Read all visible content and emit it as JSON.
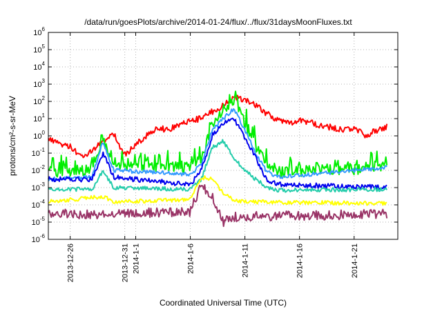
{
  "chart_data": {
    "type": "line",
    "title": "/data/run/goesPlots/archive/2014-01-24/flux/../flux/31daysMoonFluxes.txt",
    "xlabel": "Coordinated Universal Time (UTC)",
    "ylabel": "protons/cm²-s-sr-MeV",
    "y_scale": "log",
    "ylim": [
      1e-06,
      1000000.0
    ],
    "xlim": [
      "2013-12-24",
      "2014-01-25"
    ],
    "grid": true,
    "legend": "none",
    "x_ticks": [
      {
        "date": "2013-12-26",
        "label": "2013-12-26"
      },
      {
        "date": "2013-12-31",
        "label": "2013-12-31"
      },
      {
        "date": "2014-01-01",
        "label": "2014-1-1"
      },
      {
        "date": "2014-01-06",
        "label": "2014-1-6"
      },
      {
        "date": "2014-01-11",
        "label": "2014-1-11"
      },
      {
        "date": "2014-01-16",
        "label": "2014-1-16"
      },
      {
        "date": "2014-01-21",
        "label": "2014-1-21"
      }
    ],
    "y_ticks": [
      {
        "exp": "6"
      },
      {
        "exp": "5"
      },
      {
        "exp": "4"
      },
      {
        "exp": "3"
      },
      {
        "exp": "2"
      },
      {
        "exp": "1"
      },
      {
        "exp": "0"
      },
      {
        "exp": "-1"
      },
      {
        "exp": "-2"
      },
      {
        "exp": "-3"
      },
      {
        "exp": "-4"
      },
      {
        "exp": "-5"
      },
      {
        "exp": "-6"
      }
    ],
    "series": [
      {
        "color": "#ff0000",
        "noise": 0.18,
        "spike": 0,
        "points": [
          [
            "2013-12-24",
            0.8
          ],
          [
            "2013-12-25",
            0.3
          ],
          [
            "2013-12-26",
            0.25
          ],
          [
            "2013-12-27",
            0.06
          ],
          [
            "2013-12-28",
            0.15
          ],
          [
            "2013-12-29",
            0.5
          ],
          [
            "2013-12-30",
            1.2
          ],
          [
            "2013-12-31",
            0.08
          ],
          [
            "2014-01-01",
            0.3
          ],
          [
            "2014-01-02",
            1.0
          ],
          [
            "2014-01-03",
            3.0
          ],
          [
            "2014-01-04",
            2.0
          ],
          [
            "2014-01-05",
            5.0
          ],
          [
            "2014-01-06",
            8.0
          ],
          [
            "2014-01-07",
            10
          ],
          [
            "2014-01-08",
            25
          ],
          [
            "2014-01-09",
            60
          ],
          [
            "2014-01-10",
            180
          ],
          [
            "2014-01-11",
            120
          ],
          [
            "2014-01-12",
            60
          ],
          [
            "2014-01-13",
            20
          ],
          [
            "2014-01-14",
            8
          ],
          [
            "2014-01-15",
            5
          ],
          [
            "2014-01-16",
            8
          ],
          [
            "2014-01-17",
            6
          ],
          [
            "2014-01-18",
            4
          ],
          [
            "2014-01-19",
            3
          ],
          [
            "2014-01-20",
            2
          ],
          [
            "2014-01-21",
            3
          ],
          [
            "2014-01-22",
            1.0
          ],
          [
            "2014-01-23",
            2.0
          ],
          [
            "2014-01-24",
            3.5
          ]
        ]
      },
      {
        "color": "#00ee00",
        "noise": 0.35,
        "spike": 0.8,
        "points": [
          [
            "2013-12-24",
            0.008
          ],
          [
            "2013-12-28",
            0.01
          ],
          [
            "2013-12-29",
            0.8
          ],
          [
            "2013-12-30",
            0.02
          ],
          [
            "2014-01-06",
            0.015
          ],
          [
            "2014-01-07",
            0.05
          ],
          [
            "2014-01-08",
            5.0
          ],
          [
            "2014-01-09",
            20
          ],
          [
            "2014-01-10",
            100
          ],
          [
            "2014-01-11",
            5
          ],
          [
            "2014-01-12",
            0.3
          ],
          [
            "2014-01-13",
            0.02
          ],
          [
            "2014-01-14",
            0.008
          ],
          [
            "2014-01-24",
            0.015
          ]
        ]
      },
      {
        "color": "#3399ff",
        "noise": 0.12,
        "spike": 0,
        "points": [
          [
            "2013-12-24",
            0.003
          ],
          [
            "2013-12-28",
            0.004
          ],
          [
            "2013-12-29",
            0.5
          ],
          [
            "2013-12-30",
            0.01
          ],
          [
            "2014-01-06",
            0.006
          ],
          [
            "2014-01-07",
            0.02
          ],
          [
            "2014-01-08",
            2.0
          ],
          [
            "2014-01-09",
            10
          ],
          [
            "2014-01-10",
            40
          ],
          [
            "2014-01-11",
            2
          ],
          [
            "2014-01-12",
            0.1
          ],
          [
            "2014-01-13",
            0.008
          ],
          [
            "2014-01-14",
            0.004
          ],
          [
            "2014-01-24",
            0.015
          ]
        ]
      },
      {
        "color": "#0000ee",
        "noise": 0.15,
        "spike": 0,
        "points": [
          [
            "2013-12-24",
            0.003
          ],
          [
            "2013-12-28",
            0.003
          ],
          [
            "2013-12-29",
            0.1
          ],
          [
            "2013-12-30",
            0.004
          ],
          [
            "2014-01-06",
            0.0015
          ],
          [
            "2014-01-07",
            0.01
          ],
          [
            "2014-01-08",
            1.0
          ],
          [
            "2014-01-09",
            5
          ],
          [
            "2014-01-10",
            10
          ],
          [
            "2014-01-11",
            0.8
          ],
          [
            "2014-01-12",
            0.05
          ],
          [
            "2014-01-13",
            0.003
          ],
          [
            "2014-01-14",
            0.0015
          ],
          [
            "2014-01-24",
            0.001
          ]
        ]
      },
      {
        "color": "#22ccaa",
        "noise": 0.12,
        "spike": 0,
        "points": [
          [
            "2013-12-24",
            0.0008
          ],
          [
            "2013-12-28",
            0.0008
          ],
          [
            "2013-12-29",
            0.01
          ],
          [
            "2013-12-30",
            0.001
          ],
          [
            "2014-01-06",
            0.0008
          ],
          [
            "2014-01-07",
            0.003
          ],
          [
            "2014-01-08",
            0.2
          ],
          [
            "2014-01-09",
            0.5
          ],
          [
            "2014-01-10",
            0.05
          ],
          [
            "2014-01-11",
            0.01
          ],
          [
            "2014-01-12",
            0.003
          ],
          [
            "2014-01-13",
            0.001
          ],
          [
            "2014-01-14",
            0.0007
          ],
          [
            "2014-01-24",
            0.0008
          ]
        ]
      },
      {
        "color": "#ffff00",
        "noise": 0.12,
        "spike": 0,
        "points": [
          [
            "2013-12-24",
            0.00015
          ],
          [
            "2013-12-29",
            0.0003
          ],
          [
            "2013-12-30",
            0.00015
          ],
          [
            "2014-01-06",
            0.0002
          ],
          [
            "2014-01-07",
            0.004
          ],
          [
            "2014-01-08",
            0.003
          ],
          [
            "2014-01-09",
            0.0005
          ],
          [
            "2014-01-10",
            0.0002
          ],
          [
            "2014-01-11",
            0.00015
          ],
          [
            "2014-01-24",
            0.00012
          ]
        ]
      },
      {
        "color": "#993366",
        "noise": 0.28,
        "spike": 0,
        "points": [
          [
            "2013-12-24",
            3e-05
          ],
          [
            "2013-12-29",
            3e-05
          ],
          [
            "2014-01-06",
            4e-05
          ],
          [
            "2014-01-07",
            0.0015
          ],
          [
            "2014-01-08",
            0.0003
          ],
          [
            "2014-01-09",
            1e-05
          ],
          [
            "2014-01-10",
            2e-05
          ],
          [
            "2014-01-24",
            3e-05
          ]
        ]
      }
    ]
  }
}
